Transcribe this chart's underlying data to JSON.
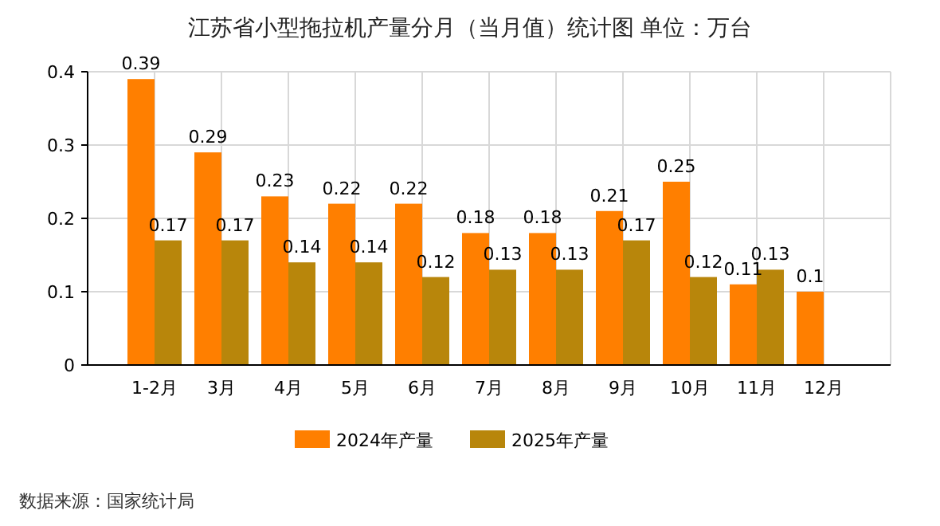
{
  "chart_data": {
    "type": "bar",
    "title": "江苏省小型拖拉机产量分月（当月值）统计图 单位：万台",
    "categories": [
      "1-2月",
      "3月",
      "4月",
      "5月",
      "6月",
      "7月",
      "8月",
      "9月",
      "10月",
      "11月",
      "12月"
    ],
    "series": [
      {
        "name": "2024年产量",
        "color": "#ff7f00",
        "values": [
          0.39,
          0.29,
          0.23,
          0.22,
          0.22,
          0.18,
          0.18,
          0.21,
          0.25,
          0.11,
          0.1
        ]
      },
      {
        "name": "2025年产量",
        "color": "#b8860b",
        "values": [
          0.17,
          0.17,
          0.14,
          0.14,
          0.12,
          0.13,
          0.13,
          0.17,
          0.12,
          0.13,
          null
        ]
      }
    ],
    "ylim": [
      0,
      0.4
    ],
    "yticks": [
      0,
      0.1,
      0.2,
      0.3,
      0.4
    ],
    "grid": true,
    "legend": "bottom",
    "data_labels": true,
    "annotations": [
      "数据来源：国家统计局"
    ]
  }
}
